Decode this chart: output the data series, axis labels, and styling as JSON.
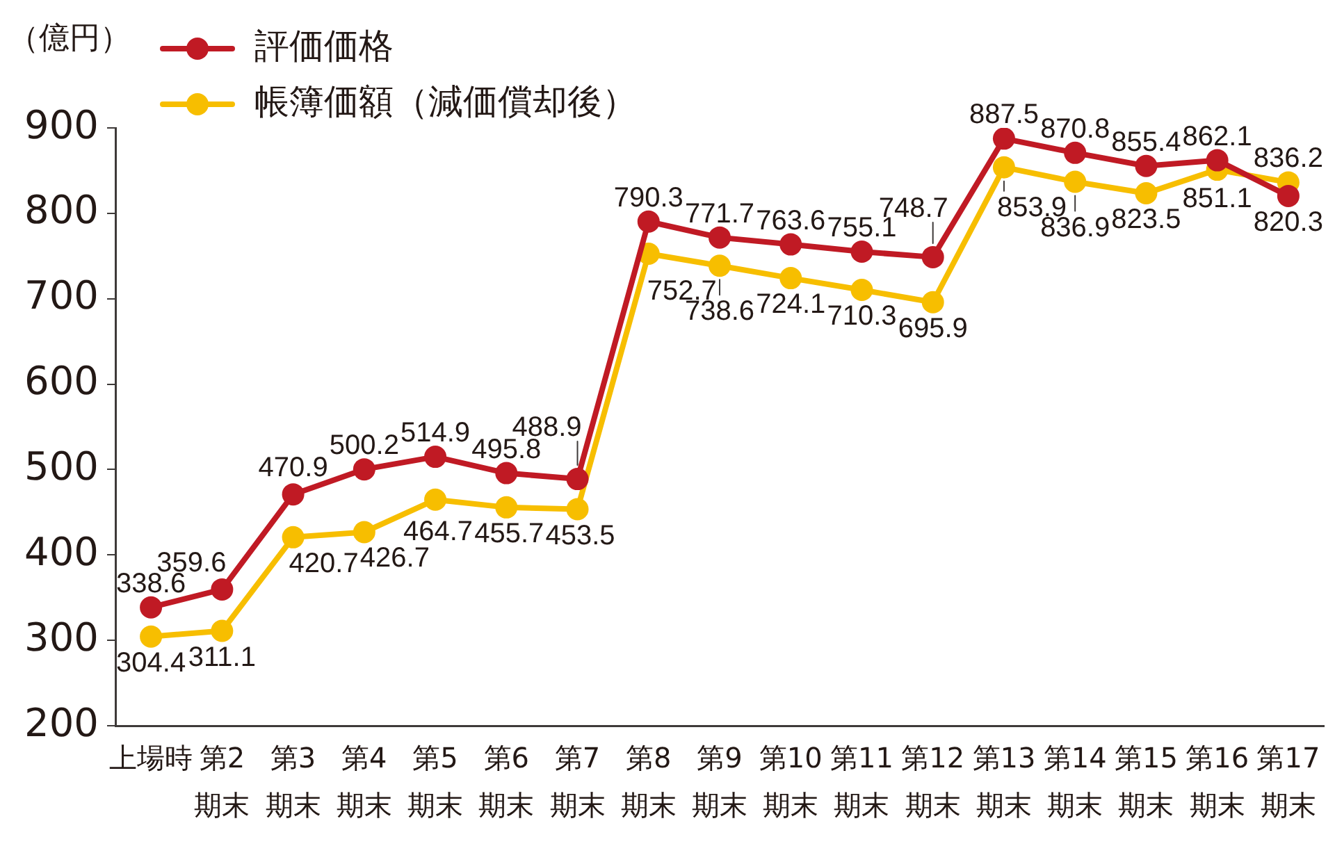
{
  "chart_data": {
    "type": "line",
    "ylabel": "（億円）",
    "categories": [
      "上場時",
      "第2\n期末",
      "第3\n期末",
      "第4\n期末",
      "第5\n期末",
      "第6\n期末",
      "第7\n期末",
      "第8\n期末",
      "第9\n期末",
      "第10\n期末",
      "第11\n期末",
      "第12\n期末",
      "第13\n期末",
      "第14\n期末",
      "第15\n期末",
      "第16\n期末",
      "第17\n期末"
    ],
    "series": [
      {
        "name": "評価価格",
        "color": "#c01a24",
        "values": [
          338.6,
          359.6,
          470.9,
          500.2,
          514.9,
          495.8,
          488.9,
          790.3,
          771.7,
          763.6,
          755.1,
          748.7,
          887.5,
          870.8,
          855.4,
          862.1,
          820.3
        ]
      },
      {
        "name": "帳簿価額（減価償却後）",
        "color": "#f7be00",
        "values": [
          304.4,
          311.1,
          420.7,
          426.7,
          464.7,
          455.7,
          453.5,
          752.7,
          738.6,
          724.1,
          710.3,
          695.9,
          853.9,
          836.9,
          823.5,
          851.1,
          836.2
        ]
      }
    ],
    "ylim": [
      200,
      900
    ],
    "yticks": [
      200,
      300,
      400,
      500,
      600,
      700,
      800,
      900
    ],
    "legend": "top left",
    "marker": "circle",
    "line_style": "solid",
    "data_labels": true
  }
}
